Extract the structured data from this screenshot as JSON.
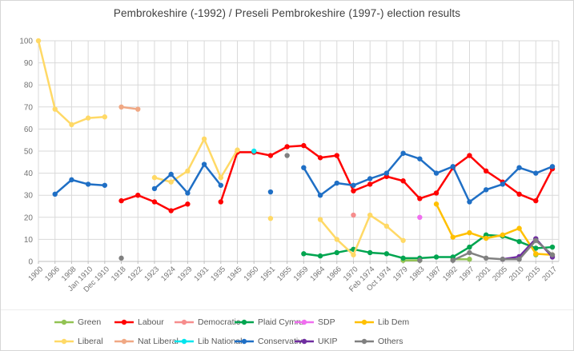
{
  "title": "Pembrokeshire (-1992) / Preseli Pembrokeshire (1997-) election results",
  "chart_data": {
    "type": "line",
    "title": "Pembrokeshire (-1992) / Preseli Pembrokeshire (1997-) election results",
    "xlabel": "",
    "ylabel": "",
    "grid": true,
    "y_axis": {
      "min": 0,
      "max": 100,
      "step": 10,
      "ticks": [
        0,
        10,
        20,
        30,
        40,
        50,
        60,
        70,
        80,
        90,
        100
      ]
    },
    "x_axis": {
      "categories": [
        "1900",
        "1906",
        "1908",
        "Jan 1910",
        "Dec 1910",
        "1918",
        "1922",
        "1923",
        "1924",
        "1929",
        "1931",
        "1935",
        "1945",
        "1950",
        "1951",
        "1955",
        "1959",
        "1964",
        "1966",
        "1970",
        "Feb 1974",
        "Oct 1974",
        "1979",
        "1983",
        "1987",
        "1992",
        "1997",
        "2001",
        "2005",
        "2010",
        "2015",
        "2017"
      ]
    },
    "legend": {
      "position": "bottom",
      "rows": [
        [
          "Green",
          "Labour",
          "Democratic",
          "Plaid Cymru",
          "SDP",
          "Lib Dem"
        ],
        [
          "Liberal",
          "Nat Liberal",
          "Lib National",
          "Conservative",
          "UKIP",
          "Others"
        ]
      ]
    },
    "series": [
      {
        "name": "Green",
        "color": "#92C353",
        "values": [
          null,
          null,
          null,
          null,
          null,
          null,
          null,
          null,
          null,
          null,
          null,
          null,
          null,
          null,
          null,
          null,
          null,
          null,
          null,
          null,
          null,
          null,
          0.5,
          0.5,
          null,
          1,
          1,
          null,
          null,
          null,
          3,
          null
        ]
      },
      {
        "name": "Labour",
        "color": "#FF0000",
        "values": [
          null,
          null,
          null,
          null,
          null,
          27.5,
          30,
          27,
          23,
          26,
          null,
          27,
          49.5,
          49.5,
          48,
          52,
          52.5,
          47,
          48,
          32,
          35,
          38.5,
          36.5,
          28.5,
          31,
          42.5,
          48,
          41,
          36,
          30.5,
          27.5,
          42
        ]
      },
      {
        "name": "Democratic",
        "color": "#F68D8D",
        "values": [
          null,
          null,
          null,
          null,
          null,
          null,
          null,
          null,
          null,
          null,
          null,
          null,
          null,
          null,
          null,
          null,
          null,
          null,
          null,
          21,
          null,
          null,
          null,
          null,
          null,
          null,
          null,
          null,
          null,
          null,
          null,
          null
        ]
      },
      {
        "name": "Plaid Cymru",
        "color": "#00A550",
        "values": [
          null,
          null,
          null,
          null,
          null,
          null,
          null,
          null,
          null,
          null,
          null,
          null,
          null,
          null,
          null,
          null,
          3.5,
          2.5,
          4,
          5.5,
          4,
          3.5,
          1.5,
          1.5,
          2,
          2,
          6.5,
          12,
          11.5,
          9,
          6,
          6.5
        ]
      },
      {
        "name": "SDP",
        "color": "#F06EEF",
        "values": [
          null,
          null,
          null,
          null,
          null,
          null,
          null,
          null,
          null,
          null,
          null,
          null,
          null,
          null,
          null,
          null,
          null,
          null,
          null,
          null,
          null,
          null,
          null,
          20,
          null,
          null,
          null,
          null,
          null,
          null,
          null,
          null
        ]
      },
      {
        "name": "Lib Dem",
        "color": "#FFC000",
        "values": [
          null,
          null,
          null,
          null,
          null,
          null,
          null,
          null,
          null,
          null,
          null,
          null,
          null,
          null,
          null,
          null,
          null,
          null,
          null,
          null,
          null,
          null,
          null,
          null,
          26,
          11,
          13,
          10.5,
          12,
          15,
          3.5,
          3
        ]
      },
      {
        "name": "Liberal",
        "color": "#FFD966",
        "values": [
          100,
          69,
          62,
          65,
          65.5,
          null,
          null,
          38,
          36,
          41,
          55.5,
          38,
          50.5,
          null,
          19.5,
          null,
          null,
          19,
          10,
          3,
          21,
          16,
          9.5,
          null,
          null,
          null,
          null,
          null,
          null,
          null,
          null,
          null
        ]
      },
      {
        "name": "Nat Liberal",
        "color": "#F0A884",
        "values": [
          null,
          null,
          null,
          null,
          null,
          70,
          69,
          null,
          null,
          null,
          null,
          null,
          null,
          null,
          null,
          null,
          null,
          null,
          null,
          null,
          null,
          null,
          null,
          null,
          null,
          null,
          null,
          null,
          null,
          null,
          null,
          null
        ]
      },
      {
        "name": "Lib National",
        "color": "#00E5EE",
        "values": [
          null,
          null,
          null,
          null,
          null,
          null,
          null,
          null,
          null,
          null,
          null,
          null,
          null,
          50,
          null,
          null,
          null,
          null,
          null,
          null,
          null,
          null,
          null,
          null,
          null,
          null,
          null,
          null,
          null,
          null,
          null,
          null
        ]
      },
      {
        "name": "Conservative",
        "color": "#1F6FC5",
        "values": [
          null,
          30.5,
          37,
          35,
          34.5,
          null,
          null,
          33,
          39.5,
          31,
          44,
          34.5,
          null,
          null,
          31.5,
          null,
          42.5,
          30,
          35.5,
          34.5,
          37.5,
          40,
          49,
          46.5,
          40,
          43,
          27,
          32.5,
          35,
          42.5,
          40,
          43
        ]
      },
      {
        "name": "UKIP",
        "color": "#6F2DA0",
        "values": [
          null,
          null,
          null,
          null,
          null,
          null,
          null,
          null,
          null,
          null,
          null,
          null,
          null,
          null,
          null,
          null,
          null,
          null,
          null,
          null,
          null,
          null,
          null,
          null,
          null,
          null,
          null,
          null,
          1,
          2.2,
          10.3,
          2
        ]
      },
      {
        "name": "Others",
        "color": "#808080",
        "values": [
          null,
          null,
          null,
          null,
          null,
          1.5,
          null,
          null,
          null,
          null,
          null,
          null,
          null,
          null,
          null,
          48,
          null,
          null,
          null,
          null,
          null,
          null,
          null,
          0.5,
          null,
          0.5,
          4,
          1.5,
          1,
          1,
          9.5,
          3
        ]
      }
    ]
  }
}
